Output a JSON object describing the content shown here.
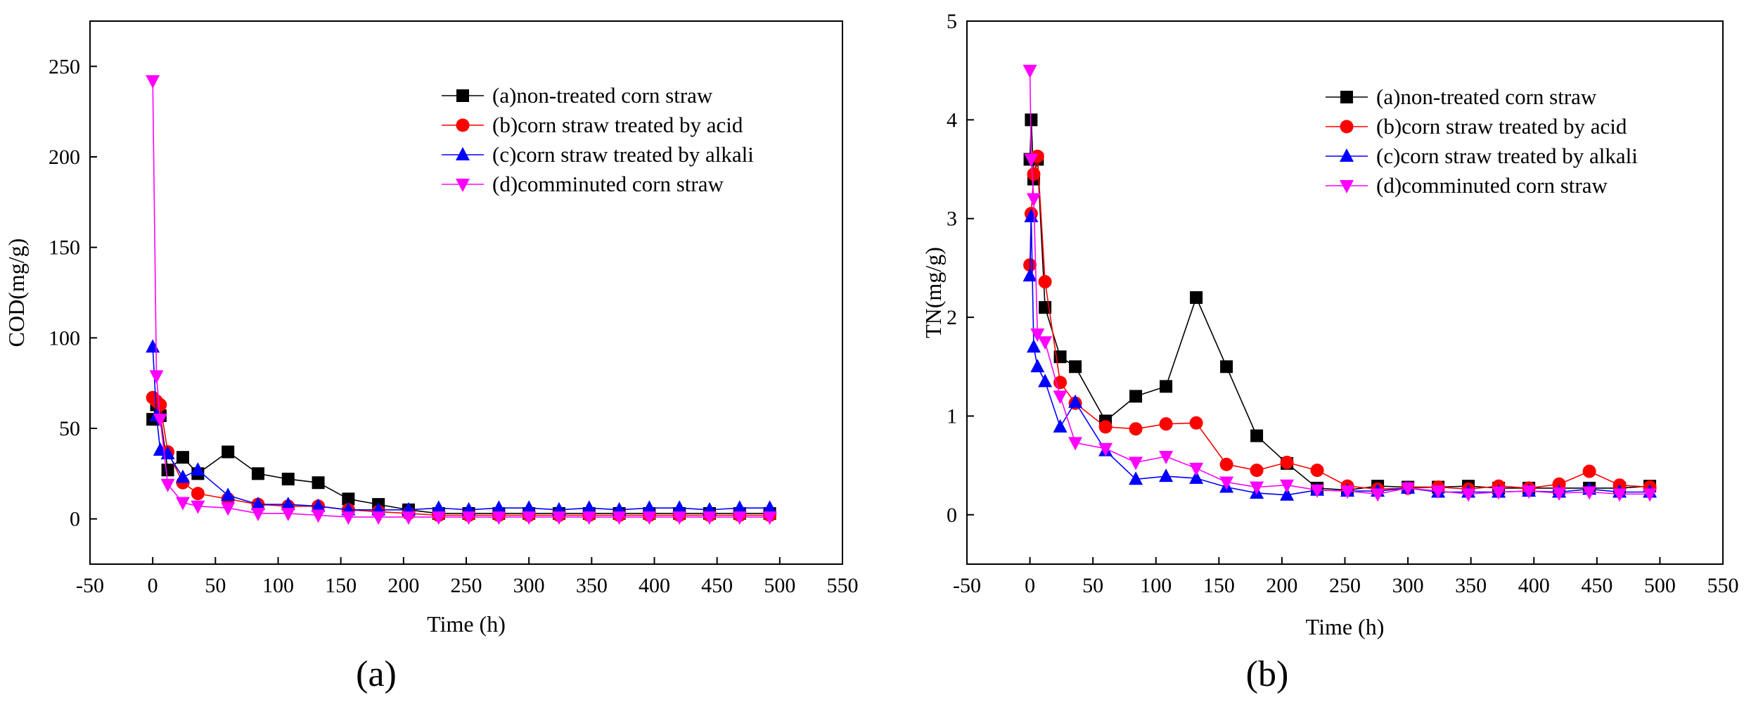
{
  "chart_data": [
    {
      "type": "line",
      "panel_label": "(a)",
      "title": "",
      "xlabel": "Time (h)",
      "ylabel": "COD(mg/g)",
      "xlim": [
        -50,
        550
      ],
      "ylim": [
        -25,
        275
      ],
      "xticks": [
        -50,
        0,
        50,
        100,
        150,
        200,
        250,
        300,
        350,
        400,
        450,
        500,
        550
      ],
      "yticks": [
        0,
        50,
        100,
        150,
        200,
        250
      ],
      "legend_position": "top-right",
      "series": [
        {
          "name": "(a)non-treated corn straw",
          "color": "#000000",
          "marker": "square",
          "x": [
            0,
            3,
            6,
            12,
            24,
            36,
            60,
            84,
            108,
            132,
            156,
            180,
            204,
            228,
            252,
            276,
            300,
            324,
            348,
            372,
            396,
            420,
            444,
            468,
            492
          ],
          "y": [
            55,
            63,
            57,
            27,
            34,
            25,
            37,
            25,
            22,
            20,
            11,
            8,
            5,
            3,
            3,
            3,
            3,
            3,
            3,
            3,
            3,
            3,
            3,
            3,
            3
          ]
        },
        {
          "name": "(b)corn straw treated by acid",
          "color": "#ff0000",
          "marker": "circle",
          "x": [
            0,
            3,
            6,
            12,
            24,
            36,
            60,
            84,
            108,
            132,
            156,
            180,
            204,
            228,
            252,
            276,
            300,
            324,
            348,
            372,
            396,
            420,
            444,
            468,
            492
          ],
          "y": [
            67,
            65,
            63,
            37,
            20,
            14,
            11,
            8,
            7,
            7,
            5,
            4,
            3,
            2,
            2,
            2,
            2,
            2,
            2,
            2,
            2,
            2,
            2,
            2,
            2
          ]
        },
        {
          "name": "(c)corn straw treated by alkali",
          "color": "#0000ff",
          "marker": "triangle-up",
          "x": [
            0,
            3,
            6,
            12,
            24,
            36,
            60,
            84,
            108,
            132,
            156,
            180,
            204,
            228,
            252,
            276,
            300,
            324,
            348,
            372,
            396,
            420,
            444,
            468,
            492
          ],
          "y": [
            95,
            57,
            38,
            36,
            23,
            27,
            13,
            8,
            8,
            7,
            5,
            5,
            5,
            6,
            5,
            6,
            6,
            5,
            6,
            5,
            6,
            6,
            5,
            6,
            6
          ]
        },
        {
          "name": "(d)comminuted corn straw",
          "color": "#ff00ff",
          "marker": "triangle-down",
          "x": [
            0,
            3,
            6,
            12,
            24,
            36,
            60,
            84,
            108,
            132,
            156,
            180,
            204,
            228,
            252,
            276,
            300,
            324,
            348,
            372,
            396,
            420,
            444,
            468,
            492
          ],
          "y": [
            242,
            79,
            55,
            19,
            9,
            7,
            6,
            3,
            3,
            2,
            1,
            1,
            1,
            1,
            1,
            1,
            1,
            1,
            1,
            1,
            1,
            1,
            1,
            1,
            1
          ]
        }
      ]
    },
    {
      "type": "line",
      "panel_label": "(b)",
      "title": "",
      "xlabel": "Time (h)",
      "ylabel": "TN(mg/g)",
      "xlim": [
        -50,
        550
      ],
      "ylim": [
        -0.5,
        5
      ],
      "xticks": [
        -50,
        0,
        50,
        100,
        150,
        200,
        250,
        300,
        350,
        400,
        450,
        500,
        550
      ],
      "yticks": [
        0,
        1,
        2,
        3,
        4,
        5
      ],
      "legend_position": "top-right",
      "series": [
        {
          "name": "(a)non-treated corn straw",
          "color": "#000000",
          "marker": "square",
          "x": [
            0,
            1,
            3,
            6,
            12,
            24,
            36,
            60,
            84,
            108,
            132,
            156,
            180,
            204,
            228,
            252,
            276,
            300,
            324,
            348,
            372,
            396,
            420,
            444,
            468,
            492
          ],
          "y": [
            3.6,
            4.0,
            3.4,
            3.6,
            2.1,
            1.6,
            1.5,
            0.95,
            1.2,
            1.3,
            2.2,
            1.5,
            0.8,
            0.52,
            0.27,
            0.25,
            0.29,
            0.28,
            0.28,
            0.29,
            0.27,
            0.27,
            0.27,
            0.27,
            0.27,
            0.29
          ]
        },
        {
          "name": "(b)corn straw treated by acid",
          "color": "#ff0000",
          "marker": "circle",
          "x": [
            0,
            1,
            3,
            6,
            12,
            24,
            36,
            60,
            84,
            108,
            132,
            156,
            180,
            204,
            228,
            252,
            276,
            300,
            324,
            348,
            372,
            396,
            420,
            444,
            468,
            492
          ],
          "y": [
            2.53,
            3.05,
            3.45,
            3.63,
            2.36,
            1.34,
            1.13,
            0.89,
            0.87,
            0.92,
            0.93,
            0.51,
            0.45,
            0.53,
            0.45,
            0.29,
            0.26,
            0.27,
            0.28,
            0.26,
            0.29,
            0.27,
            0.31,
            0.44,
            0.3,
            0.28
          ]
        },
        {
          "name": "(c)corn straw treated by alkali",
          "color": "#0000ff",
          "marker": "triangle-up",
          "x": [
            0,
            1,
            3,
            6,
            12,
            24,
            36,
            60,
            84,
            108,
            132,
            156,
            180,
            204,
            228,
            252,
            276,
            300,
            324,
            348,
            372,
            396,
            420,
            444,
            468,
            492
          ],
          "y": [
            2.42,
            3.02,
            1.7,
            1.5,
            1.35,
            0.89,
            1.14,
            0.65,
            0.36,
            0.39,
            0.37,
            0.28,
            0.22,
            0.2,
            0.25,
            0.24,
            0.24,
            0.27,
            0.23,
            0.23,
            0.23,
            0.24,
            0.23,
            0.26,
            0.23,
            0.23
          ]
        },
        {
          "name": "(d)comminuted corn straw",
          "color": "#ff00ff",
          "marker": "triangle-down",
          "x": [
            0,
            1,
            3,
            6,
            12,
            24,
            36,
            60,
            84,
            108,
            132,
            156,
            180,
            204,
            228,
            252,
            276,
            300,
            324,
            348,
            372,
            396,
            420,
            444,
            468,
            492
          ],
          "y": [
            4.5,
            3.6,
            3.2,
            1.83,
            1.75,
            1.2,
            0.73,
            0.67,
            0.53,
            0.59,
            0.47,
            0.33,
            0.28,
            0.3,
            0.25,
            0.24,
            0.21,
            0.27,
            0.24,
            0.21,
            0.23,
            0.24,
            0.22,
            0.23,
            0.21,
            0.21
          ]
        }
      ]
    }
  ]
}
